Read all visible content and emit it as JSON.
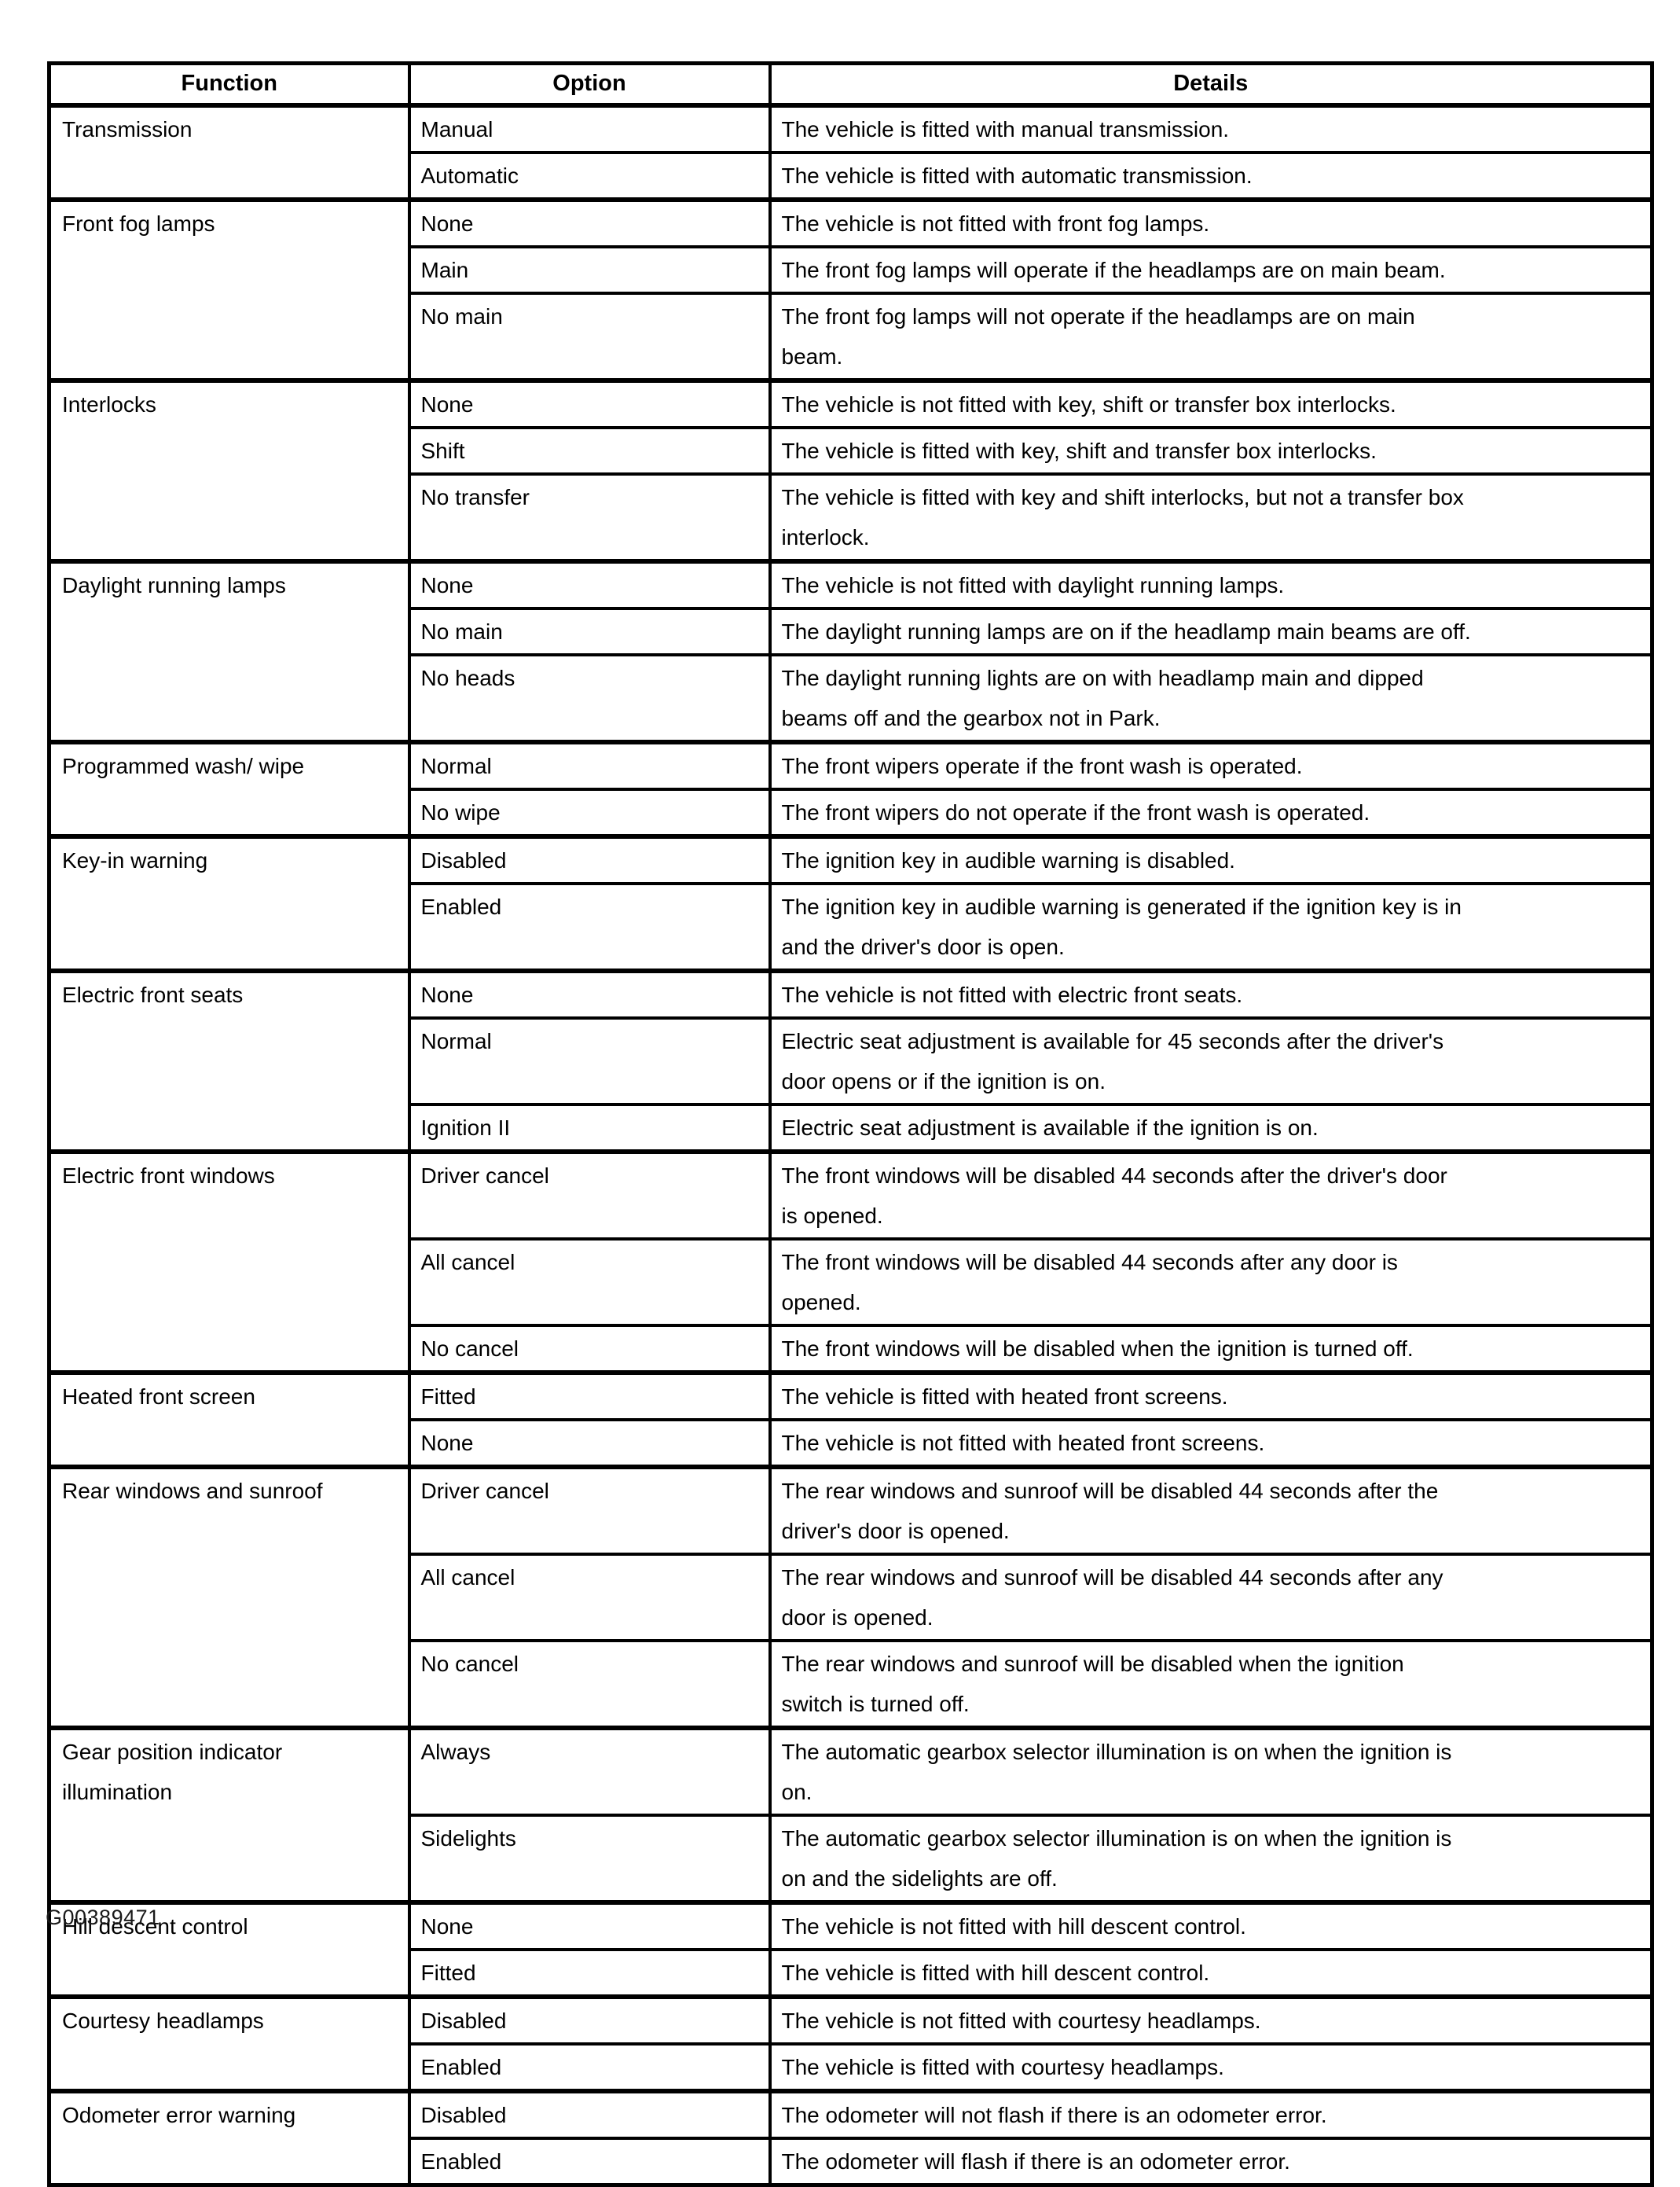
{
  "table": {
    "headers": {
      "function": "Function",
      "option": "Option",
      "details": "Details"
    },
    "groups": [
      {
        "function": "Transmission",
        "rows": [
          {
            "option": "Manual",
            "details": "The vehicle is fitted with manual transmission."
          },
          {
            "option": "Automatic",
            "details": "The vehicle is fitted with automatic transmission."
          }
        ]
      },
      {
        "function": "Front fog lamps",
        "rows": [
          {
            "option": "None",
            "details": "The vehicle is not fitted with front fog lamps."
          },
          {
            "option": "Main",
            "details": "The front fog lamps will operate if the headlamps are on main beam."
          },
          {
            "option": "No main",
            "details": "The front fog lamps will not operate if the headlamps are on main\nbeam."
          }
        ]
      },
      {
        "function": "Interlocks",
        "rows": [
          {
            "option": "None",
            "details": "The vehicle is not fitted with key, shift or transfer box interlocks."
          },
          {
            "option": "Shift",
            "details": "The vehicle is fitted with key, shift and transfer box interlocks."
          },
          {
            "option": "No transfer",
            "details": "The vehicle is fitted with key and shift interlocks, but not a transfer box\ninterlock."
          }
        ]
      },
      {
        "function": "Daylight running lamps",
        "rows": [
          {
            "option": "None",
            "details": "The vehicle is not fitted with daylight running lamps."
          },
          {
            "option": "No main",
            "details": "The daylight running lamps are on if the headlamp main beams are off."
          },
          {
            "option": "No heads",
            "details": "The daylight running lights are on with headlamp main and dipped\nbeams off and the gearbox not in Park."
          }
        ]
      },
      {
        "function": "Programmed wash/ wipe",
        "rows": [
          {
            "option": "Normal",
            "details": "The front wipers operate if the front wash is operated."
          },
          {
            "option": "No wipe",
            "details": "The front wipers do not operate if the front wash is operated."
          }
        ]
      },
      {
        "function": "Key-in warning",
        "rows": [
          {
            "option": "Disabled",
            "details": "The ignition key in audible warning is disabled."
          },
          {
            "option": "Enabled",
            "details": "The ignition key in audible warning is generated if the ignition key is in\nand the driver's door is open."
          }
        ]
      },
      {
        "function": "Electric front seats",
        "rows": [
          {
            "option": "None",
            "details": "The vehicle is not fitted with electric front seats."
          },
          {
            "option": "Normal",
            "details": "Electric seat adjustment is available for 45 seconds after the driver's\ndoor opens or if the ignition is on."
          },
          {
            "option": "Ignition II",
            "details": "Electric seat adjustment is available if the ignition is on."
          }
        ]
      },
      {
        "function": "Electric front windows",
        "rows": [
          {
            "option": "Driver cancel",
            "details": "The front windows will be disabled 44 seconds after the driver's door\nis opened."
          },
          {
            "option": "All cancel",
            "details": "The front windows will be disabled 44 seconds after any door is\nopened."
          },
          {
            "option": "No cancel",
            "details": "The front windows will be disabled when the ignition is turned off."
          }
        ]
      },
      {
        "function": "Heated front screen",
        "rows": [
          {
            "option": "Fitted",
            "details": "The vehicle is fitted with heated front screens."
          },
          {
            "option": "None",
            "details": "The vehicle is not fitted with heated front screens."
          }
        ]
      },
      {
        "function": "Rear windows and sunroof",
        "rows": [
          {
            "option": "Driver cancel",
            "details": "The rear windows and sunroof will be disabled 44 seconds after the\ndriver's door is opened."
          },
          {
            "option": "All cancel",
            "details": "The rear windows and sunroof will be disabled 44 seconds after any\ndoor is opened."
          },
          {
            "option": "No cancel",
            "details": "The rear windows and sunroof will be disabled when the ignition\nswitch is turned off."
          }
        ]
      },
      {
        "function": "Gear position indicator\nillumination",
        "rows": [
          {
            "option": "Always",
            "details": "The automatic gearbox selector illumination is on when the ignition is\non."
          },
          {
            "option": "Sidelights",
            "details": "The automatic gearbox selector illumination is on when the ignition is\non and the sidelights are off."
          }
        ]
      },
      {
        "function": "Hill descent control",
        "rows": [
          {
            "option": "None",
            "details": "The vehicle is not fitted with hill descent control."
          },
          {
            "option": "Fitted",
            "details": "The vehicle is fitted with hill descent control."
          }
        ]
      },
      {
        "function": "Courtesy headlamps",
        "rows": [
          {
            "option": "Disabled",
            "details": "The vehicle is not fitted with courtesy headlamps."
          },
          {
            "option": "Enabled",
            "details": "The vehicle is fitted with courtesy headlamps."
          }
        ]
      },
      {
        "function": "Odometer error warning",
        "rows": [
          {
            "option": "Disabled",
            "details": "The odometer will not flash if there is an odometer error."
          },
          {
            "option": "Enabled",
            "details": "The odometer will flash if there is an odometer error."
          }
        ]
      }
    ]
  },
  "footer": {
    "figure_id": "G00389471"
  }
}
